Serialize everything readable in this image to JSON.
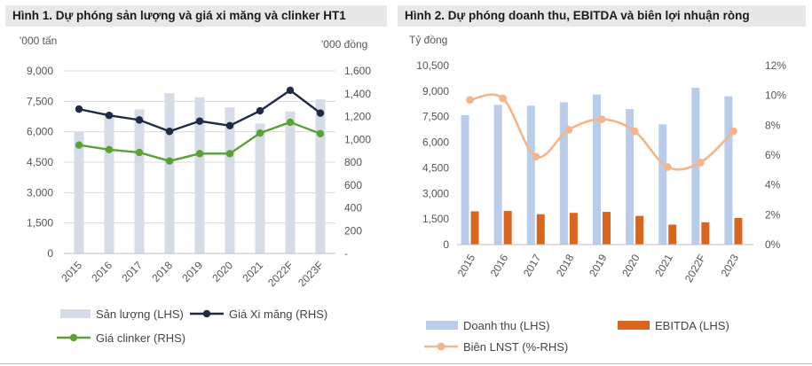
{
  "colors": {
    "bar_light": "#d5dce8",
    "line_dark": "#1f2a44",
    "line_green": "#5aa134",
    "bar_blue": "#b9cdea",
    "bar_orange": "#d9661f",
    "line_peach": "#f4b58a",
    "axis_text": "#555555",
    "header_bg": "#e8e8e8"
  },
  "figure1": {
    "header": "Hình 1. Dự phóng sản lượng và giá xi măng và clinker HT1",
    "chart_data": {
      "type": "bar",
      "title": "Hình 1. Dự phóng sản lượng và giá xi măng và clinker HT1",
      "categories": [
        "2015",
        "2016",
        "2017",
        "2018",
        "2019",
        "2020",
        "2021",
        "2022F",
        "2023F"
      ],
      "ylabel_left": "'000 tấn",
      "ylabel_right": "'000 đồng",
      "left_axis": {
        "min": 0,
        "max": 9000,
        "ticks": [
          "0",
          "1,500",
          "3,000",
          "4,500",
          "6,000",
          "7,500",
          "9,000"
        ]
      },
      "right_axis": {
        "min": 0,
        "max": 1600,
        "ticks": [
          "-",
          "200",
          "400",
          "600",
          "800",
          "1,000",
          "1,200",
          "1,400",
          "1,600"
        ]
      },
      "grid": true,
      "legend_position": "bottom",
      "series": [
        {
          "name": "Sản lượng (LHS)",
          "type": "bar",
          "axis": "left",
          "color": "#d5dce8",
          "values": [
            6000,
            6950,
            7100,
            7900,
            7700,
            7200,
            6400,
            7000,
            7600
          ]
        },
        {
          "name": "Giá Xi măng (RHS)",
          "type": "line",
          "axis": "right",
          "color": "#1f2a44",
          "values": [
            1265,
            1210,
            1170,
            1070,
            1160,
            1120,
            1250,
            1430,
            1230
          ]
        },
        {
          "name": "Giá clinker (RHS)",
          "type": "line",
          "axis": "right",
          "color": "#5aa134",
          "values": [
            950,
            910,
            885,
            810,
            875,
            875,
            1055,
            1150,
            1050
          ]
        }
      ]
    }
  },
  "figure2": {
    "header": "Hình 2. Dự phóng doanh thu, EBITDA và biên lợi nhuận ròng",
    "chart_data": {
      "type": "bar",
      "title": "Hình 2. Dự phóng doanh thu, EBITDA và biên lợi nhuận ròng",
      "categories": [
        "2015",
        "2016",
        "2017",
        "2018",
        "2019",
        "2020",
        "2021",
        "2022F",
        "2023"
      ],
      "ylabel_left": "Tỷ đồng",
      "ylabel_right": "",
      "left_axis": {
        "min": 0,
        "max": 10500,
        "ticks": [
          "0",
          "1,500",
          "3,000",
          "4,500",
          "6,000",
          "7,500",
          "9,000",
          "10,500"
        ]
      },
      "right_axis": {
        "min": 0,
        "max": 12,
        "ticks": [
          "0%",
          "2%",
          "4%",
          "6%",
          "8%",
          "10%",
          "12%"
        ]
      },
      "grid": false,
      "legend_position": "bottom",
      "series": [
        {
          "name": "Doanh thu (LHS)",
          "type": "bar",
          "axis": "left",
          "color": "#b9cdea",
          "values": [
            7600,
            8200,
            8150,
            8350,
            8800,
            7950,
            7050,
            9200,
            8700
          ]
        },
        {
          "name": "EBITDA (LHS)",
          "type": "bar",
          "axis": "left",
          "color": "#d9661f",
          "values": [
            1950,
            1970,
            1780,
            1860,
            1920,
            1680,
            1170,
            1310,
            1560
          ]
        },
        {
          "name": "Biên LNST (%-RHS)",
          "type": "line",
          "axis": "right",
          "color": "#f4b58a",
          "smooth": true,
          "values": [
            9.7,
            9.8,
            5.9,
            7.7,
            8.4,
            7.6,
            5.2,
            5.5,
            7.6
          ]
        }
      ]
    }
  }
}
